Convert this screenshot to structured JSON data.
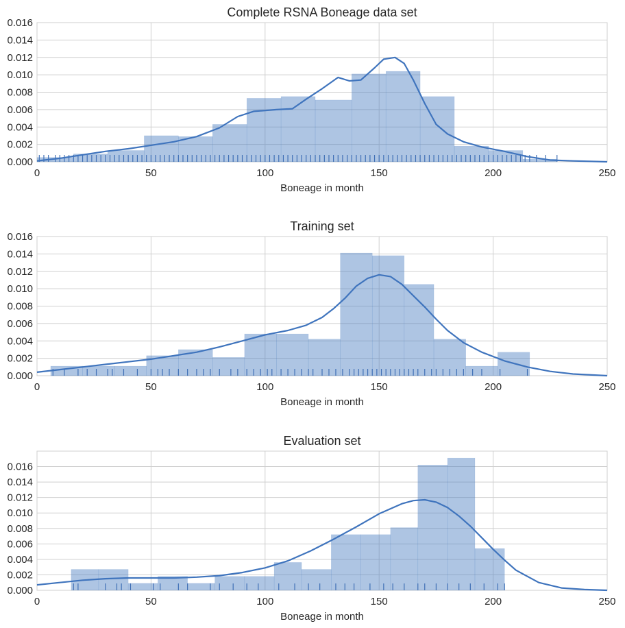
{
  "chart_data": [
    {
      "type": "histogram",
      "title": "Complete RSNA Boneage data set",
      "xlabel": "Boneage in month",
      "ylabel": "",
      "xlim": [
        0,
        250
      ],
      "ylim": [
        0,
        0.016
      ],
      "xticks": [
        0,
        50,
        100,
        150,
        200,
        250
      ],
      "yticks": [
        0.0,
        0.002,
        0.004,
        0.006,
        0.008,
        0.01,
        0.012,
        0.014,
        0.016
      ],
      "grid": true,
      "color": "#4c7fc2",
      "bins": [
        {
          "x0": 0,
          "x1": 16,
          "value": 0.0005
        },
        {
          "x0": 16,
          "x1": 31,
          "value": 0.0009
        },
        {
          "x0": 31,
          "x1": 47,
          "value": 0.0013
        },
        {
          "x0": 47,
          "x1": 62,
          "value": 0.003
        },
        {
          "x0": 62,
          "x1": 77,
          "value": 0.0029
        },
        {
          "x0": 77,
          "x1": 92,
          "value": 0.0043
        },
        {
          "x0": 92,
          "x1": 107,
          "value": 0.0073
        },
        {
          "x0": 107,
          "x1": 122,
          "value": 0.0075
        },
        {
          "x0": 122,
          "x1": 138,
          "value": 0.0071
        },
        {
          "x0": 138,
          "x1": 153,
          "value": 0.0101
        },
        {
          "x0": 153,
          "x1": 168,
          "value": 0.0104
        },
        {
          "x0": 168,
          "x1": 183,
          "value": 0.0075
        },
        {
          "x0": 183,
          "x1": 198,
          "value": 0.0018
        },
        {
          "x0": 198,
          "x1": 213,
          "value": 0.0013
        },
        {
          "x0": 213,
          "x1": 228,
          "value": 0.0003
        }
      ],
      "kde": {
        "x": [
          0,
          10,
          20,
          30,
          40,
          50,
          60,
          70,
          80,
          88,
          95,
          105,
          112,
          118,
          125,
          132,
          137,
          142,
          148,
          152,
          157,
          161,
          165,
          170,
          175,
          180,
          187,
          195,
          205,
          215,
          225,
          235,
          250
        ],
        "y": [
          0.0001,
          0.0004,
          0.0008,
          0.0012,
          0.0015,
          0.0019,
          0.0023,
          0.0029,
          0.0039,
          0.0052,
          0.0058,
          0.006,
          0.0061,
          0.0072,
          0.0084,
          0.0097,
          0.0093,
          0.0094,
          0.0108,
          0.0118,
          0.012,
          0.0113,
          0.0094,
          0.0067,
          0.0043,
          0.0032,
          0.0023,
          0.0017,
          0.0012,
          0.0006,
          0.0002,
          0.0001,
          0.0
        ]
      },
      "rug": [
        1,
        3,
        5,
        8,
        10,
        12,
        14,
        16,
        18,
        20,
        22,
        24,
        26,
        28,
        30,
        32,
        34,
        36,
        38,
        40,
        42,
        44,
        46,
        48,
        50,
        52,
        54,
        56,
        58,
        60,
        62,
        64,
        66,
        68,
        70,
        72,
        74,
        76,
        78,
        80,
        82,
        84,
        86,
        88,
        90,
        92,
        94,
        96,
        98,
        100,
        102,
        104,
        106,
        108,
        110,
        112,
        114,
        116,
        118,
        120,
        122,
        124,
        126,
        128,
        130,
        132,
        134,
        136,
        138,
        140,
        142,
        144,
        146,
        148,
        150,
        152,
        154,
        156,
        158,
        160,
        162,
        164,
        166,
        168,
        170,
        172,
        174,
        176,
        178,
        180,
        182,
        184,
        186,
        188,
        190,
        192,
        194,
        196,
        198,
        200,
        202,
        204,
        206,
        208,
        210,
        212,
        214,
        216,
        219,
        223,
        228
      ]
    },
    {
      "type": "histogram",
      "title": "Training set",
      "xlabel": "Boneage in month",
      "ylabel": "",
      "xlim": [
        0,
        250
      ],
      "ylim": [
        0,
        0.016
      ],
      "xticks": [
        0,
        50,
        100,
        150,
        200,
        250
      ],
      "yticks": [
        0.0,
        0.002,
        0.004,
        0.006,
        0.008,
        0.01,
        0.012,
        0.014,
        0.016
      ],
      "grid": true,
      "color": "#4c7fc2",
      "bins": [
        {
          "x0": 6,
          "x1": 20,
          "value": 0.0011
        },
        {
          "x0": 20,
          "x1": 34,
          "value": 0.0011
        },
        {
          "x0": 34,
          "x1": 48,
          "value": 0.0011
        },
        {
          "x0": 48,
          "x1": 62,
          "value": 0.0023
        },
        {
          "x0": 62,
          "x1": 77,
          "value": 0.003
        },
        {
          "x0": 77,
          "x1": 91,
          "value": 0.0021
        },
        {
          "x0": 91,
          "x1": 105,
          "value": 0.0048
        },
        {
          "x0": 105,
          "x1": 119,
          "value": 0.0048
        },
        {
          "x0": 119,
          "x1": 133,
          "value": 0.0042
        },
        {
          "x0": 133,
          "x1": 147,
          "value": 0.0141
        },
        {
          "x0": 147,
          "x1": 161,
          "value": 0.0138
        },
        {
          "x0": 161,
          "x1": 174,
          "value": 0.0105
        },
        {
          "x0": 174,
          "x1": 188,
          "value": 0.0042
        },
        {
          "x0": 188,
          "x1": 202,
          "value": 0.0011
        },
        {
          "x0": 202,
          "x1": 216,
          "value": 0.0027
        }
      ],
      "kde": {
        "x": [
          0,
          10,
          20,
          30,
          40,
          50,
          60,
          70,
          80,
          90,
          100,
          110,
          118,
          125,
          130,
          135,
          140,
          145,
          150,
          155,
          160,
          165,
          170,
          175,
          180,
          187,
          195,
          205,
          215,
          225,
          235,
          250
        ],
        "y": [
          0.0004,
          0.0007,
          0.001,
          0.0013,
          0.0016,
          0.0019,
          0.0023,
          0.0027,
          0.0033,
          0.004,
          0.0047,
          0.0052,
          0.0058,
          0.0067,
          0.0077,
          0.0089,
          0.0103,
          0.0112,
          0.0116,
          0.0114,
          0.0105,
          0.0092,
          0.0079,
          0.0065,
          0.0052,
          0.0038,
          0.0027,
          0.0017,
          0.001,
          0.0005,
          0.0002,
          0.0
        ]
      },
      "rug": [
        7,
        12,
        18,
        22,
        26,
        31,
        33,
        38,
        44,
        50,
        53,
        55,
        58,
        62,
        66,
        70,
        73,
        76,
        80,
        85,
        88,
        92,
        95,
        98,
        101,
        103,
        107,
        110,
        113,
        116,
        119,
        121,
        125,
        128,
        131,
        134,
        137,
        139,
        141,
        143,
        145,
        147,
        149,
        151,
        153,
        155,
        157,
        159,
        161,
        163,
        165,
        167,
        170,
        173,
        175,
        178,
        181,
        184,
        187,
        191,
        195,
        203,
        215
      ]
    },
    {
      "type": "histogram",
      "title": "Evaluation set",
      "xlabel": "Boneage in month",
      "ylabel": "",
      "xlim": [
        0,
        250
      ],
      "ylim": [
        0,
        0.018
      ],
      "xticks": [
        0,
        50,
        100,
        150,
        200,
        250
      ],
      "yticks": [
        0.0,
        0.002,
        0.004,
        0.006,
        0.008,
        0.01,
        0.012,
        0.014,
        0.016
      ],
      "grid": true,
      "color": "#4c7fc2",
      "bins": [
        {
          "x0": 15,
          "x1": 27,
          "value": 0.0027
        },
        {
          "x0": 27,
          "x1": 40,
          "value": 0.0027
        },
        {
          "x0": 40,
          "x1": 53,
          "value": 0.0009
        },
        {
          "x0": 53,
          "x1": 66,
          "value": 0.0018
        },
        {
          "x0": 66,
          "x1": 78,
          "value": 0.0009
        },
        {
          "x0": 78,
          "x1": 91,
          "value": 0.0018
        },
        {
          "x0": 91,
          "x1": 104,
          "value": 0.0018
        },
        {
          "x0": 104,
          "x1": 116,
          "value": 0.0036
        },
        {
          "x0": 116,
          "x1": 129,
          "value": 0.0027
        },
        {
          "x0": 129,
          "x1": 142,
          "value": 0.0072
        },
        {
          "x0": 142,
          "x1": 155,
          "value": 0.0072
        },
        {
          "x0": 155,
          "x1": 167,
          "value": 0.0081
        },
        {
          "x0": 167,
          "x1": 180,
          "value": 0.0162
        },
        {
          "x0": 180,
          "x1": 192,
          "value": 0.0171
        },
        {
          "x0": 192,
          "x1": 205,
          "value": 0.0054
        }
      ],
      "kde": {
        "x": [
          0,
          10,
          20,
          30,
          40,
          50,
          60,
          70,
          80,
          90,
          100,
          110,
          120,
          130,
          140,
          150,
          160,
          165,
          170,
          175,
          180,
          185,
          190,
          195,
          200,
          205,
          210,
          220,
          230,
          240,
          250
        ],
        "y": [
          0.0007,
          0.001,
          0.0013,
          0.0015,
          0.0016,
          0.0016,
          0.0016,
          0.0017,
          0.0019,
          0.0023,
          0.0029,
          0.0038,
          0.0051,
          0.0066,
          0.0082,
          0.0099,
          0.0112,
          0.0116,
          0.0117,
          0.0114,
          0.0107,
          0.0096,
          0.0083,
          0.0068,
          0.0053,
          0.0039,
          0.0026,
          0.001,
          0.0003,
          0.0001,
          0.0
        ]
      },
      "rug": [
        16,
        18,
        30,
        35,
        37,
        41,
        51,
        54,
        62,
        66,
        76,
        80,
        86,
        92,
        97,
        106,
        113,
        119,
        124,
        131,
        135,
        139,
        146,
        152,
        156,
        161,
        167,
        170,
        175,
        180,
        185,
        190,
        196,
        202,
        205
      ]
    }
  ]
}
